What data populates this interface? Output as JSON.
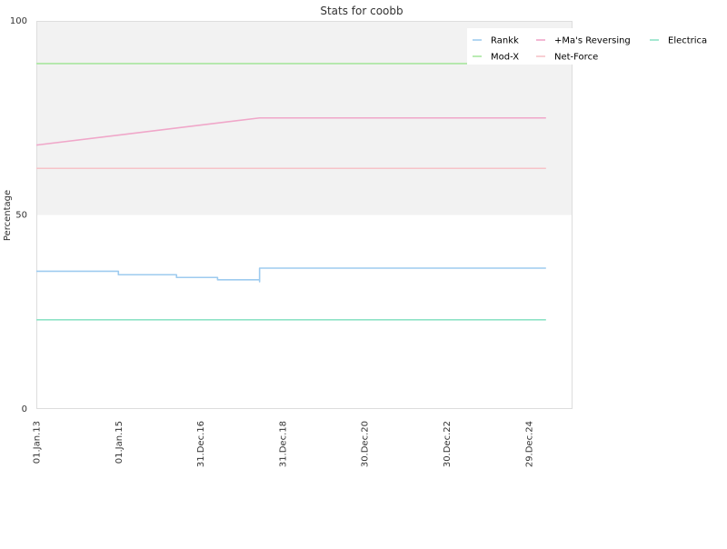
{
  "chart_data": {
    "type": "line",
    "title": "Stats for coobb",
    "xlabel": "",
    "ylabel": "Percentage",
    "ylim": [
      0,
      100
    ],
    "y_ticks": [
      "0",
      "50",
      "100"
    ],
    "x_tick_labels": [
      "01.Jan.13",
      "01.Jan.15",
      "31.Dec.16",
      "31.Dec.18",
      "30.Dec.20",
      "30.Dec.22",
      "29.Dec.24"
    ],
    "xlim": [
      "2013-01-01",
      "2026-01-23"
    ],
    "grid": false,
    "background_bands": [
      {
        "from": 50,
        "to": 100,
        "color": "#f2f2f2"
      }
    ],
    "legend": {
      "placement": "top-right",
      "columns": 3
    },
    "series": [
      {
        "name": "Rankk",
        "color": "#9ecbef",
        "step": true,
        "points": [
          {
            "x": "2013-01-01",
            "y": 35.5
          },
          {
            "x": "2015-01-01",
            "y": 34.6
          },
          {
            "x": "2016-06-01",
            "y": 33.9
          },
          {
            "x": "2017-06-01",
            "y": 33.3
          },
          {
            "x": "2018-06-10",
            "y": 32.8
          },
          {
            "x": "2018-06-10",
            "y": 36.3
          },
          {
            "x": "2025-06-01",
            "y": 36.3
          }
        ]
      },
      {
        "name": "+Ma's Reversing",
        "color": "#f0a7c9",
        "step": false,
        "points": [
          {
            "x": "2013-01-01",
            "y": 68
          },
          {
            "x": "2018-06-10",
            "y": 75
          },
          {
            "x": "2025-06-01",
            "y": 75
          }
        ]
      },
      {
        "name": "Electrica",
        "color": "#8fe3c6",
        "step": false,
        "points": [
          {
            "x": "2013-01-01",
            "y": 23
          },
          {
            "x": "2025-06-01",
            "y": 23
          }
        ]
      },
      {
        "name": "Mod-X",
        "color": "#a8e6a0",
        "step": false,
        "points": [
          {
            "x": "2013-01-01",
            "y": 89
          },
          {
            "x": "2026-01-23",
            "y": 89
          }
        ]
      },
      {
        "name": "Net-Force",
        "color": "#f6c3c8",
        "step": false,
        "points": [
          {
            "x": "2013-01-01",
            "y": 62
          },
          {
            "x": "2025-06-01",
            "y": 62
          }
        ]
      }
    ]
  }
}
